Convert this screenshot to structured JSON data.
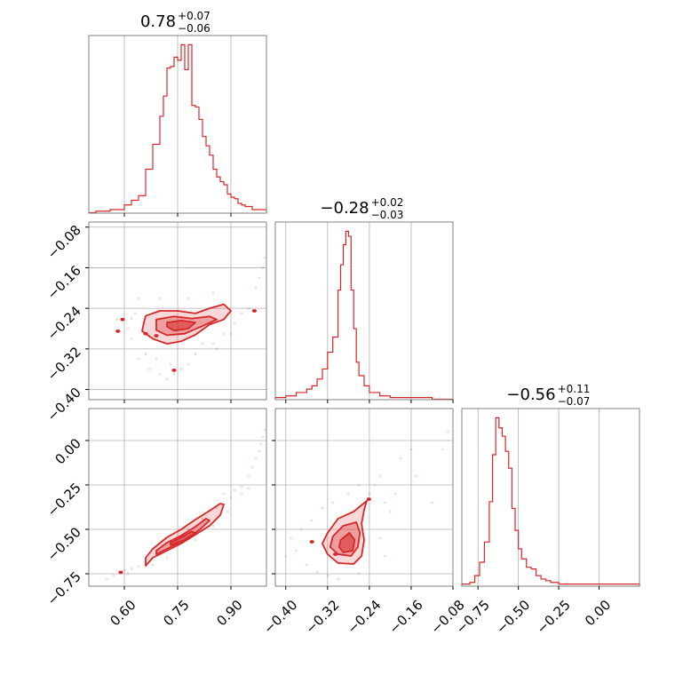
{
  "figure": {
    "type": "corner",
    "accent_color": "#d62728",
    "grid": true
  },
  "chart_data": [
    {
      "id": "hist-p0",
      "type": "histogram",
      "title": {
        "main": "0.78",
        "plus": "+0.07",
        "minus": "−0.06"
      },
      "xlim": [
        0.5,
        1.0
      ],
      "xticks": [
        0.6,
        0.75,
        0.9
      ],
      "tick_labels_shown": false,
      "bin_edges": [
        0.5,
        0.52,
        0.54,
        0.56,
        0.58,
        0.6,
        0.62,
        0.64,
        0.66,
        0.68,
        0.7,
        0.71,
        0.72,
        0.73,
        0.74,
        0.75,
        0.76,
        0.77,
        0.78,
        0.79,
        0.8,
        0.81,
        0.82,
        0.83,
        0.84,
        0.85,
        0.86,
        0.87,
        0.88,
        0.89,
        0.9,
        0.91,
        0.92,
        0.93,
        0.94,
        0.96,
        0.98,
        1.0
      ],
      "counts": [
        0,
        1,
        1,
        2,
        2,
        5,
        8,
        11,
        28,
        44,
        62,
        75,
        93,
        94,
        100,
        98,
        108,
        92,
        108,
        69,
        68,
        60,
        49,
        43,
        37,
        28,
        23,
        20,
        18,
        12,
        10,
        9,
        6,
        5,
        4,
        2,
        2
      ]
    },
    {
      "id": "hist-p1",
      "type": "histogram",
      "title": {
        "main": "−0.28",
        "plus": "+0.02",
        "minus": "−0.03"
      },
      "xlim": [
        -0.42,
        -0.08
      ],
      "xticks": [
        -0.4,
        -0.32,
        -0.24,
        -0.16,
        -0.08
      ],
      "tick_labels_shown": false,
      "bin_edges": [
        -0.42,
        -0.4,
        -0.38,
        -0.36,
        -0.35,
        -0.34,
        -0.33,
        -0.32,
        -0.31,
        -0.3,
        -0.295,
        -0.29,
        -0.285,
        -0.28,
        -0.275,
        -0.27,
        -0.265,
        -0.26,
        -0.25,
        -0.24,
        -0.22,
        -0.2,
        -0.18,
        -0.16,
        -0.14,
        -0.12,
        -0.1,
        -0.08
      ],
      "counts": [
        1,
        2,
        4,
        6,
        8,
        12,
        18,
        28,
        37,
        65,
        80,
        92,
        100,
        97,
        65,
        42,
        22,
        14,
        8,
        4,
        2,
        1,
        1,
        1,
        1,
        0,
        0
      ]
    },
    {
      "id": "hist-p2",
      "type": "histogram",
      "title": {
        "main": "−0.56",
        "plus": "+0.11",
        "minus": "−0.07"
      },
      "xlim": [
        -0.85,
        0.25
      ],
      "xticks": [
        -0.75,
        -0.5,
        -0.25,
        0.0
      ],
      "xtick_labels": [
        "−0.75",
        "−0.50",
        "−0.25",
        "0.00"
      ],
      "bin_edges": [
        -0.85,
        -0.8,
        -0.77,
        -0.74,
        -0.71,
        -0.68,
        -0.66,
        -0.64,
        -0.62,
        -0.6,
        -0.58,
        -0.56,
        -0.54,
        -0.52,
        -0.5,
        -0.48,
        -0.45,
        -0.42,
        -0.39,
        -0.36,
        -0.33,
        -0.3,
        -0.25,
        -0.2,
        -0.1,
        0.0,
        0.1,
        0.25
      ],
      "counts": [
        1,
        2,
        6,
        14,
        26,
        50,
        78,
        100,
        94,
        89,
        80,
        70,
        46,
        33,
        22,
        16,
        11,
        10,
        6,
        4,
        3,
        2,
        1,
        1,
        1,
        1,
        1
      ]
    },
    {
      "id": "scatter-p1-vs-p0",
      "type": "scatter",
      "xlim": [
        0.5,
        1.0
      ],
      "ylim": [
        -0.42,
        -0.07
      ],
      "xticks": [
        0.6,
        0.75,
        0.9
      ],
      "yticks": [
        -0.08,
        -0.16,
        -0.24,
        -0.32,
        -0.4
      ],
      "ytick_labels": [
        "−0.08",
        "−0.16",
        "−0.24",
        "−0.32",
        "−0.40"
      ],
      "contour_levels": [
        [
          [
            0.66,
            -0.255
          ],
          [
            0.7,
            -0.245
          ],
          [
            0.75,
            -0.245
          ],
          [
            0.8,
            -0.25
          ],
          [
            0.84,
            -0.24
          ],
          [
            0.88,
            -0.232
          ],
          [
            0.9,
            -0.245
          ],
          [
            0.88,
            -0.262
          ],
          [
            0.84,
            -0.272
          ],
          [
            0.8,
            -0.292
          ],
          [
            0.76,
            -0.305
          ],
          [
            0.72,
            -0.31
          ],
          [
            0.68,
            -0.3
          ],
          [
            0.65,
            -0.285
          ],
          [
            0.655,
            -0.268
          ]
        ],
        [
          [
            0.69,
            -0.262
          ],
          [
            0.74,
            -0.256
          ],
          [
            0.79,
            -0.26
          ],
          [
            0.84,
            -0.256
          ],
          [
            0.86,
            -0.262
          ],
          [
            0.82,
            -0.275
          ],
          [
            0.77,
            -0.29
          ],
          [
            0.72,
            -0.293
          ],
          [
            0.69,
            -0.283
          ]
        ],
        [
          [
            0.72,
            -0.268
          ],
          [
            0.76,
            -0.264
          ],
          [
            0.8,
            -0.268
          ],
          [
            0.78,
            -0.28
          ],
          [
            0.74,
            -0.284
          ],
          [
            0.72,
            -0.276
          ]
        ]
      ],
      "contour_markers": [
        [
          0.595,
          -0.262
        ],
        [
          0.582,
          -0.285
        ],
        [
          0.966,
          -0.245
        ],
        [
          0.69,
          -0.294
        ],
        [
          0.66,
          -0.29
        ],
        [
          0.74,
          -0.362
        ]
      ],
      "points": [
        [
          0.58,
          -0.262
        ],
        [
          0.62,
          -0.3
        ],
        [
          0.63,
          -0.25
        ],
        [
          0.64,
          -0.34
        ],
        [
          0.66,
          -0.33
        ],
        [
          0.67,
          -0.36
        ],
        [
          0.7,
          -0.37
        ],
        [
          0.72,
          -0.38
        ],
        [
          0.74,
          -0.37
        ],
        [
          0.76,
          -0.36
        ],
        [
          0.78,
          -0.35
        ],
        [
          0.8,
          -0.33
        ],
        [
          0.82,
          -0.31
        ],
        [
          0.85,
          -0.31
        ],
        [
          0.88,
          -0.29
        ],
        [
          0.9,
          -0.29
        ],
        [
          0.93,
          -0.25
        ],
        [
          0.95,
          -0.24
        ],
        [
          0.97,
          -0.2
        ],
        [
          0.98,
          -0.18
        ],
        [
          0.99,
          -0.16
        ],
        [
          0.995,
          -0.14
        ],
        [
          0.62,
          -0.26
        ],
        [
          0.61,
          -0.28
        ],
        [
          0.69,
          -0.34
        ],
        [
          0.73,
          -0.35
        ],
        [
          0.86,
          -0.32
        ],
        [
          0.91,
          -0.27
        ],
        [
          0.64,
          -0.22
        ],
        [
          0.7,
          -0.22
        ],
        [
          0.78,
          -0.22
        ],
        [
          0.85,
          -0.21
        ]
      ]
    },
    {
      "id": "scatter-p2-vs-p0",
      "type": "scatter",
      "xlim": [
        0.5,
        1.0
      ],
      "ylim": [
        -0.82,
        0.18
      ],
      "xticks": [
        0.6,
        0.75,
        0.9
      ],
      "xtick_labels": [
        "0.60",
        "0.75",
        "0.90"
      ],
      "yticks": [
        0.0,
        -0.25,
        -0.5,
        -0.75
      ],
      "ytick_labels": [
        "0.00",
        "−0.25",
        "−0.50",
        "−0.75"
      ],
      "contour_levels": [
        [
          [
            0.66,
            -0.705
          ],
          [
            0.68,
            -0.66
          ],
          [
            0.72,
            -0.62
          ],
          [
            0.76,
            -0.58
          ],
          [
            0.8,
            -0.53
          ],
          [
            0.84,
            -0.48
          ],
          [
            0.87,
            -0.42
          ],
          [
            0.88,
            -0.36
          ],
          [
            0.87,
            -0.355
          ],
          [
            0.84,
            -0.395
          ],
          [
            0.8,
            -0.445
          ],
          [
            0.76,
            -0.5
          ],
          [
            0.72,
            -0.545
          ],
          [
            0.68,
            -0.61
          ],
          [
            0.66,
            -0.66
          ]
        ],
        [
          [
            0.69,
            -0.64
          ],
          [
            0.73,
            -0.6
          ],
          [
            0.77,
            -0.56
          ],
          [
            0.81,
            -0.505
          ],
          [
            0.84,
            -0.45
          ],
          [
            0.83,
            -0.44
          ],
          [
            0.8,
            -0.485
          ],
          [
            0.76,
            -0.535
          ],
          [
            0.72,
            -0.575
          ],
          [
            0.69,
            -0.62
          ]
        ],
        [
          [
            0.73,
            -0.588
          ],
          [
            0.77,
            -0.56
          ],
          [
            0.8,
            -0.52
          ],
          [
            0.79,
            -0.512
          ],
          [
            0.76,
            -0.545
          ],
          [
            0.73,
            -0.575
          ]
        ]
      ],
      "contour_markers": [
        [
          0.59,
          -0.742
        ]
      ],
      "points": [
        [
          0.55,
          -0.78
        ],
        [
          0.57,
          -0.76
        ],
        [
          0.6,
          -0.73
        ],
        [
          0.62,
          -0.72
        ],
        [
          0.64,
          -0.71
        ],
        [
          0.66,
          -0.68
        ],
        [
          0.7,
          -0.62
        ],
        [
          0.74,
          -0.57
        ],
        [
          0.78,
          -0.5
        ],
        [
          0.82,
          -0.44
        ],
        [
          0.86,
          -0.38
        ],
        [
          0.9,
          -0.32
        ],
        [
          0.93,
          -0.26
        ],
        [
          0.95,
          -0.2
        ],
        [
          0.96,
          -0.15
        ],
        [
          0.97,
          -0.1
        ],
        [
          0.98,
          -0.06
        ],
        [
          0.985,
          -0.02
        ],
        [
          0.99,
          0.02
        ],
        [
          0.995,
          0.06
        ],
        [
          0.88,
          -0.3
        ],
        [
          0.91,
          -0.28
        ],
        [
          0.93,
          -0.3
        ],
        [
          0.61,
          -0.75
        ],
        [
          0.68,
          -0.7
        ],
        [
          0.72,
          -0.66
        ],
        [
          0.8,
          -0.56
        ],
        [
          0.85,
          -0.48
        ],
        [
          0.89,
          -0.4
        ],
        [
          0.95,
          -0.27
        ]
      ]
    },
    {
      "id": "scatter-p2-vs-p1",
      "type": "scatter",
      "xlim": [
        -0.42,
        -0.08
      ],
      "ylim": [
        -0.82,
        0.18
      ],
      "xticks": [
        -0.4,
        -0.32,
        -0.24,
        -0.16,
        -0.08
      ],
      "xtick_labels": [
        "−0.40",
        "−0.32",
        "−0.24",
        "−0.16",
        "−0.08"
      ],
      "yticks": [
        0.0,
        -0.25,
        -0.5,
        -0.75
      ],
      "tick_labels_shown_y": false,
      "contour_levels": [
        [
          [
            -0.32,
            -0.52
          ],
          [
            -0.3,
            -0.44
          ],
          [
            -0.27,
            -0.4
          ],
          [
            -0.245,
            -0.34
          ],
          [
            -0.25,
            -0.39
          ],
          [
            -0.255,
            -0.47
          ],
          [
            -0.25,
            -0.56
          ],
          [
            -0.255,
            -0.65
          ],
          [
            -0.27,
            -0.695
          ],
          [
            -0.3,
            -0.69
          ],
          [
            -0.32,
            -0.64
          ],
          [
            -0.33,
            -0.58
          ]
        ],
        [
          [
            -0.31,
            -0.54
          ],
          [
            -0.29,
            -0.48
          ],
          [
            -0.265,
            -0.46
          ],
          [
            -0.258,
            -0.52
          ],
          [
            -0.262,
            -0.6
          ],
          [
            -0.275,
            -0.65
          ],
          [
            -0.3,
            -0.64
          ],
          [
            -0.315,
            -0.6
          ]
        ],
        [
          [
            -0.295,
            -0.56
          ],
          [
            -0.278,
            -0.52
          ],
          [
            -0.268,
            -0.56
          ],
          [
            -0.272,
            -0.62
          ],
          [
            -0.29,
            -0.63
          ],
          [
            -0.298,
            -0.6
          ]
        ]
      ],
      "contour_markers": [
        [
          -0.35,
          -0.57
        ],
        [
          -0.241,
          -0.33
        ],
        [
          -0.305,
          -0.64
        ]
      ],
      "points": [
        [
          -0.38,
          -0.62
        ],
        [
          -0.37,
          -0.5
        ],
        [
          -0.36,
          -0.7
        ],
        [
          -0.35,
          -0.45
        ],
        [
          -0.34,
          -0.74
        ],
        [
          -0.33,
          -0.38
        ],
        [
          -0.32,
          -0.76
        ],
        [
          -0.24,
          -0.3
        ],
        [
          -0.23,
          -0.25
        ],
        [
          -0.22,
          -0.2
        ],
        [
          -0.21,
          -0.35
        ],
        [
          -0.2,
          -0.4
        ],
        [
          -0.19,
          -0.3
        ],
        [
          -0.18,
          -0.1
        ],
        [
          -0.16,
          -0.05
        ],
        [
          -0.15,
          -0.2
        ],
        [
          -0.12,
          -0.35
        ],
        [
          -0.1,
          -0.05
        ],
        [
          -0.09,
          0.05
        ],
        [
          -0.4,
          -0.65
        ],
        [
          -0.39,
          -0.55
        ],
        [
          -0.3,
          -0.78
        ],
        [
          -0.26,
          -0.75
        ],
        [
          -0.22,
          -0.55
        ],
        [
          -0.21,
          -0.65
        ],
        [
          -0.28,
          -0.3
        ],
        [
          -0.26,
          -0.25
        ],
        [
          -0.31,
          -0.35
        ]
      ]
    }
  ]
}
